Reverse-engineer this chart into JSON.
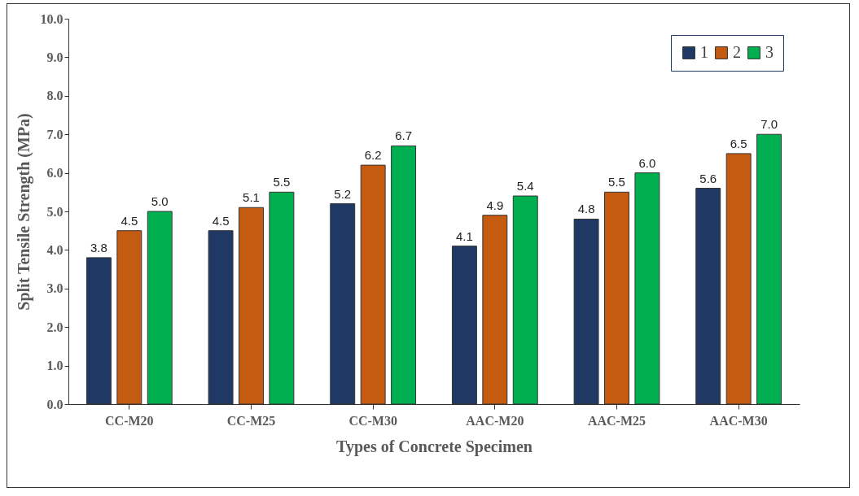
{
  "chart_data": {
    "type": "bar",
    "xlabel": "Types of Concrete Specimen",
    "ylabel": "Split Tensile Strength (MPa)",
    "categories": [
      "CC-M20",
      "CC-M25",
      "CC-M30",
      "AAC-M20",
      "AAC-M25",
      "AAC-M30"
    ],
    "series": [
      {
        "name": "1",
        "color": "#1f3864",
        "values": [
          3.8,
          4.5,
          5.2,
          4.1,
          4.8,
          5.6
        ],
        "value_labels": [
          "3.8",
          "4.5",
          "5.2",
          "4.1",
          "4.8",
          "5.6"
        ]
      },
      {
        "name": "2",
        "color": "#c55a11",
        "values": [
          4.5,
          5.1,
          6.2,
          4.9,
          5.5,
          6.5
        ],
        "value_labels": [
          "4.5",
          "5.1",
          "6.2",
          "4.9",
          "5.5",
          "6.5"
        ]
      },
      {
        "name": "3",
        "color": "#00b050",
        "values": [
          5.0,
          5.5,
          6.7,
          5.4,
          6.0,
          7.0
        ],
        "value_labels": [
          "5.0",
          "5.5",
          "6.7",
          "5.4",
          "6.0",
          "7.0"
        ]
      }
    ],
    "ylim": [
      0,
      10
    ],
    "yticks": [
      {
        "value": 0,
        "label": "0.0"
      },
      {
        "value": 1,
        "label": "1.0"
      },
      {
        "value": 2,
        "label": "2.0"
      },
      {
        "value": 3,
        "label": "3.0"
      },
      {
        "value": 4,
        "label": "4.0"
      },
      {
        "value": 5,
        "label": "5.0"
      },
      {
        "value": 6,
        "label": "6.0"
      },
      {
        "value": 7,
        "label": "7.0"
      },
      {
        "value": 8,
        "label": "8.0"
      },
      {
        "value": 9,
        "label": "9.0"
      },
      {
        "value": 10,
        "label": "10.0"
      }
    ],
    "grid": false,
    "legend": "top right"
  }
}
